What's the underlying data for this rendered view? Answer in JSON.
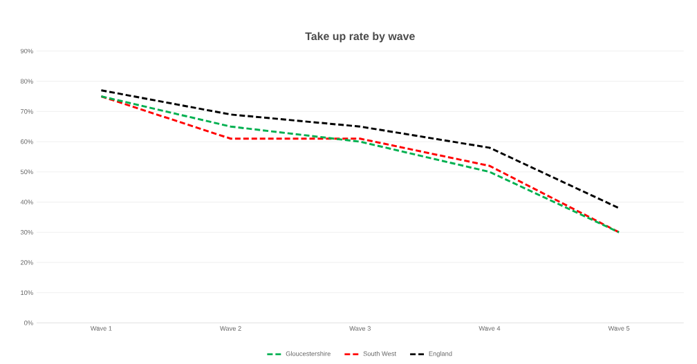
{
  "chart_data": {
    "type": "line",
    "title": "Take up rate by wave",
    "categories": [
      "Wave 1",
      "Wave 2",
      "Wave 3",
      "Wave 4",
      "Wave 5"
    ],
    "series": [
      {
        "name": "Gloucestershire",
        "color": "#00b050",
        "values": [
          75,
          65,
          60,
          50,
          30
        ]
      },
      {
        "name": "South West",
        "color": "#ff0000",
        "values": [
          75,
          61,
          61,
          52,
          30
        ]
      },
      {
        "name": "England",
        "color": "#000000",
        "values": [
          77,
          69,
          65,
          58,
          38
        ]
      }
    ],
    "ylim": [
      0,
      90
    ],
    "yticks": [
      {
        "value": 0,
        "label": "0%"
      },
      {
        "value": 10,
        "label": "10%"
      },
      {
        "value": 20,
        "label": "20%"
      },
      {
        "value": 30,
        "label": "30%"
      },
      {
        "value": 40,
        "label": "40%"
      },
      {
        "value": 50,
        "label": "50%"
      },
      {
        "value": 60,
        "label": "60%"
      },
      {
        "value": 70,
        "label": "70%"
      },
      {
        "value": 80,
        "label": "80%"
      },
      {
        "value": 90,
        "label": "90%"
      }
    ],
    "grid": "y",
    "legend": "bottom",
    "marker": "none",
    "line_style": "dashed"
  }
}
